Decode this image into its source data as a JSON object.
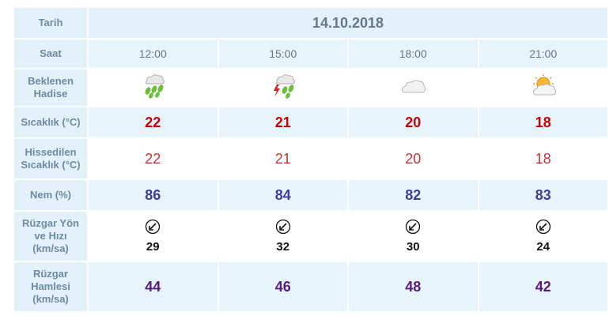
{
  "labels": {
    "date": "Tarih",
    "time": "Saat",
    "event_line1": "Beklenen",
    "event_line2": "Hadise",
    "temp": "Sıcaklık (°C)",
    "feel_line1": "Hissedilen",
    "feel_line2": "Sıcaklık (°C)",
    "humidity": "Nem (%)",
    "wind_line1": "Rüzgar Yön",
    "wind_line2": "ve Hızı",
    "wind_line3": "(km/sa)",
    "gust_line1": "Rüzgar",
    "gust_line2": "Hamlesi",
    "gust_line3": "(km/sa)"
  },
  "date": "14.10.2018",
  "columns": [
    {
      "time": "12:00",
      "event_icon": "rain-icon",
      "temp": "22",
      "feel": "22",
      "humidity": "86",
      "wind_dir_icon": "arrow-southwest-icon",
      "wind_speed": "29",
      "gust": "44"
    },
    {
      "time": "15:00",
      "event_icon": "thunderstorm-rain-icon",
      "temp": "21",
      "feel": "21",
      "humidity": "84",
      "wind_dir_icon": "arrow-southwest-icon",
      "wind_speed": "32",
      "gust": "46"
    },
    {
      "time": "18:00",
      "event_icon": "cloudy-icon",
      "temp": "20",
      "feel": "20",
      "humidity": "82",
      "wind_dir_icon": "arrow-southwest-icon",
      "wind_speed": "30",
      "gust": "48"
    },
    {
      "time": "21:00",
      "event_icon": "partly-cloudy-icon",
      "temp": "18",
      "feel": "18",
      "humidity": "83",
      "wind_dir_icon": "arrow-southwest-icon",
      "wind_speed": "24",
      "gust": "42"
    }
  ],
  "colors": {
    "label_bg": "#e3f1fb",
    "label_text": "#6d8aa5",
    "temp": "#cc0000",
    "feel": "#cc3333",
    "humidity": "#3a3f9a",
    "gust": "#5a1a7a"
  }
}
